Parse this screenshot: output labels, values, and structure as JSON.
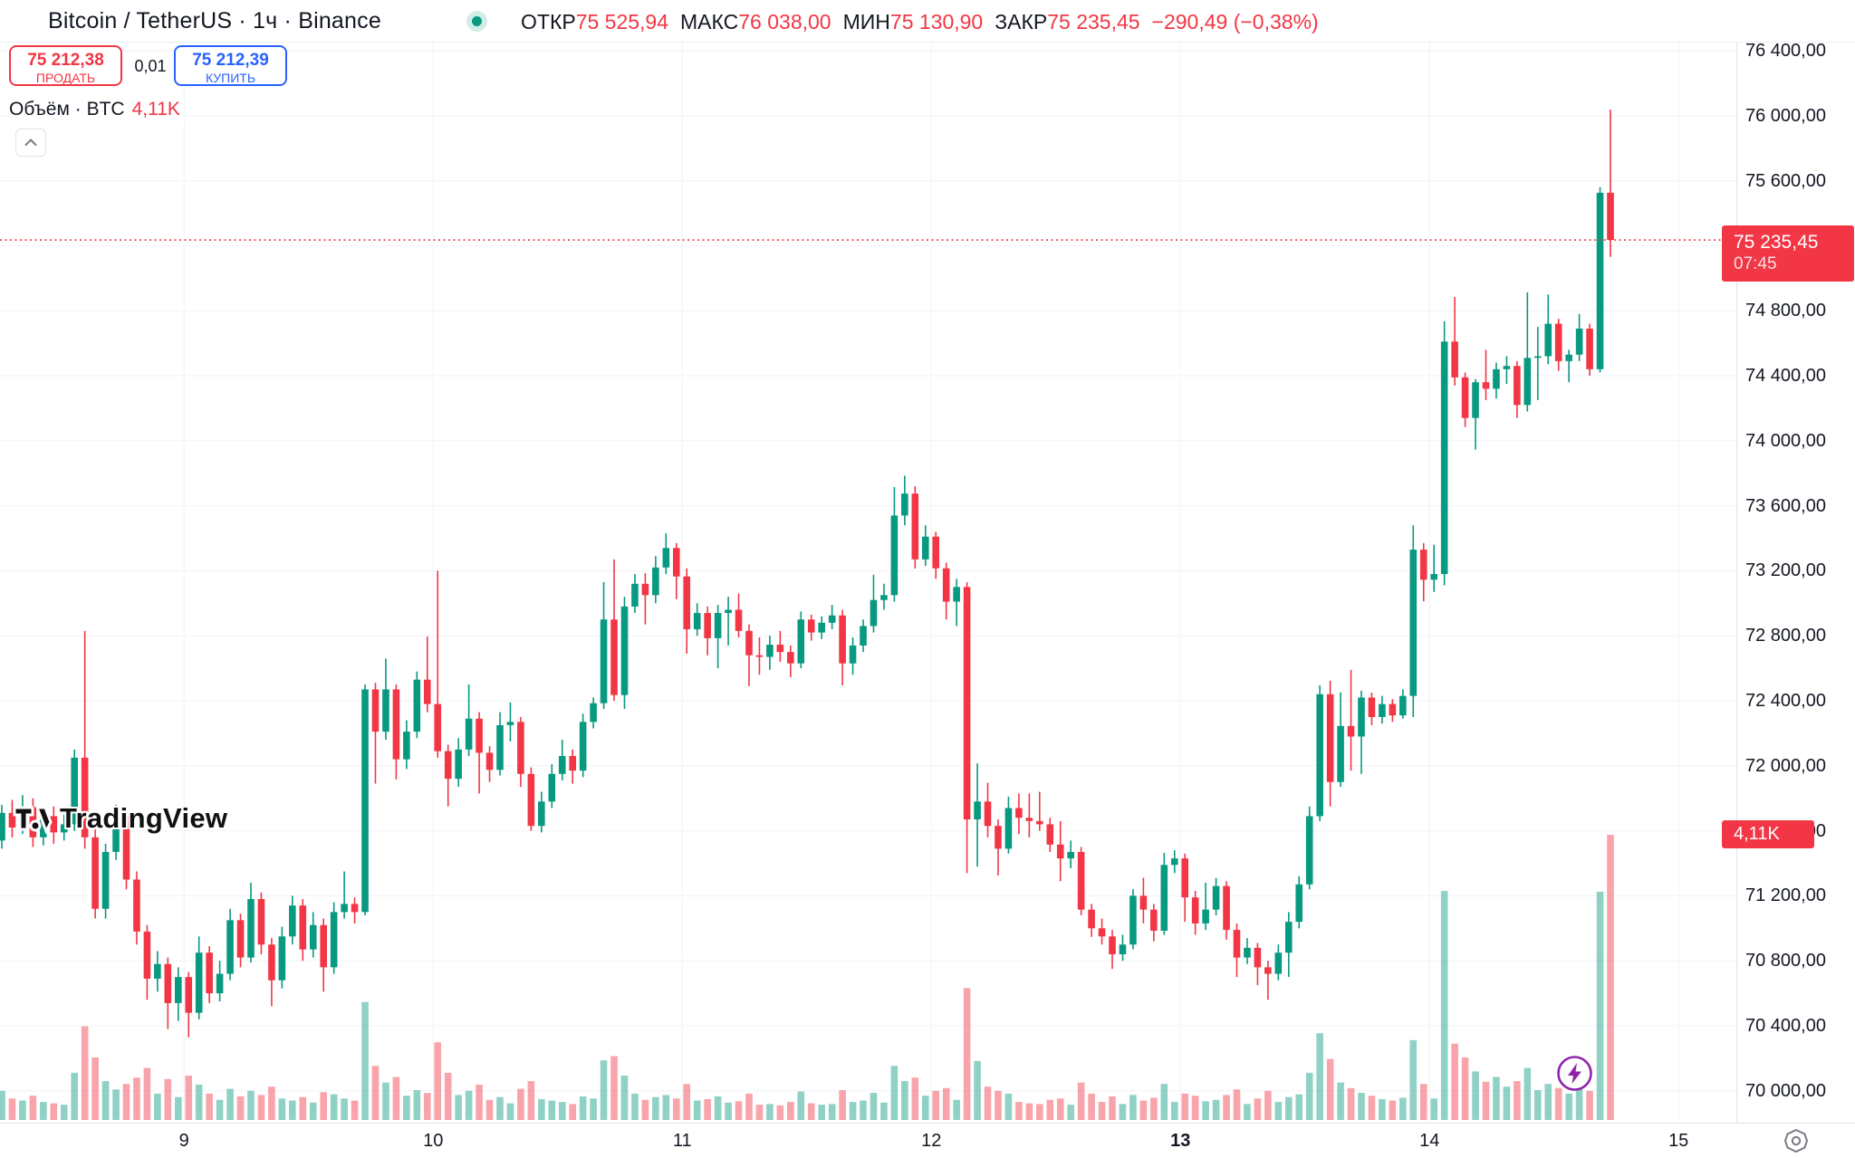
{
  "header": {
    "symbol_title": "Bitcoin / TetherUS · 1ч · Binance",
    "btc_glyph": "₿",
    "ohlc": {
      "open_label": "ОТКР",
      "open": "75 525,94",
      "high_label": "МАКС",
      "high": "76 038,00",
      "low_label": "МИН",
      "low": "75 130,90",
      "close_label": "ЗАКР",
      "close": "75 235,45",
      "change": "−290,49 (−0,38%)"
    }
  },
  "trade_panel": {
    "sell_price": "75 212,38",
    "sell_label": "ПРОДАТЬ",
    "spread": "0,01",
    "buy_price": "75 212,39",
    "buy_label": "КУПИТЬ"
  },
  "volume_row": {
    "label": "Объём · BTC",
    "value": "4,11K"
  },
  "watermark": "TradingView",
  "price_scale": {
    "price_badge": {
      "price": "75 235,45",
      "countdown": "07:45"
    },
    "volume_badge": "4,11K",
    "labels": [
      {
        "p": 76400,
        "t": "76 400,00"
      },
      {
        "p": 76000,
        "t": "76 000,00"
      },
      {
        "p": 75600,
        "t": "75 600,00"
      },
      {
        "p": 74800,
        "t": "74 800,00"
      },
      {
        "p": 74400,
        "t": "74 400,00"
      },
      {
        "p": 74000,
        "t": "74 000,00"
      },
      {
        "p": 73600,
        "t": "73 600,00"
      },
      {
        "p": 73200,
        "t": "73 200,00"
      },
      {
        "p": 72800,
        "t": "72 800,00"
      },
      {
        "p": 72400,
        "t": "72 400,00"
      },
      {
        "p": 72000,
        "t": "72 000,00"
      },
      {
        "p": 71600,
        "t": "71 600,00"
      },
      {
        "p": 71200,
        "t": "71 200,00"
      },
      {
        "p": 70800,
        "t": "70 800,00"
      },
      {
        "p": 70400,
        "t": "70 400,00"
      },
      {
        "p": 70000,
        "t": "70 000,00"
      }
    ]
  },
  "colors": {
    "up": "#089981",
    "down": "#f23645",
    "buy_blue": "#2962ff",
    "grid": "#f1f3f8",
    "volume_up": "rgba(8,153,129,0.45)",
    "volume_down": "rgba(242,54,69,0.45)",
    "badge_red": "#f23645",
    "btc_orange": "#f7931a",
    "lightning_purple": "#8e24aa",
    "muted": "#787b86"
  },
  "chart_data": {
    "type": "candlestick",
    "symbol": "BTCUSDT",
    "exchange": "Binance",
    "interval": "1h",
    "title": "Bitcoin / TetherUS · 1ч · Binance",
    "current_price": 75235.45,
    "current_volume_btc": 4110,
    "price_axis": {
      "gridline_min": 70000,
      "gridline_max": 76400,
      "grid_step": 400,
      "visible_range": [
        69800,
        76710
      ]
    },
    "volume_axis": {
      "max": 4110
    },
    "legend": "Объём · BTC",
    "time_axis": {
      "day_labels": [
        {
          "label": "9",
          "candle_index": 18,
          "bold": false
        },
        {
          "label": "10",
          "candle_index": 42,
          "bold": false
        },
        {
          "label": "11",
          "candle_index": 66,
          "bold": false
        },
        {
          "label": "12",
          "candle_index": 90,
          "bold": false
        },
        {
          "label": "13",
          "candle_index": 114,
          "bold": true
        },
        {
          "label": "14",
          "candle_index": 138,
          "bold": false
        },
        {
          "label": "15",
          "candle_index": 162,
          "bold": false
        }
      ]
    },
    "candles_format": [
      "open",
      "high",
      "low",
      "close",
      "volume_btc"
    ],
    "candles": [
      [
        71540,
        71760,
        71490,
        71710,
        420
      ],
      [
        71710,
        71790,
        71560,
        71620,
        310
      ],
      [
        71620,
        71820,
        71580,
        71750,
        280
      ],
      [
        71750,
        71800,
        71500,
        71560,
        350
      ],
      [
        71560,
        71740,
        71510,
        71690,
        260
      ],
      [
        71690,
        71750,
        71520,
        71590,
        240
      ],
      [
        71590,
        71700,
        71540,
        71640,
        220
      ],
      [
        71640,
        72100,
        71600,
        72050,
        680
      ],
      [
        72050,
        72830,
        71490,
        71560,
        1350
      ],
      [
        71560,
        71620,
        71060,
        71120,
        900
      ],
      [
        71120,
        71520,
        71060,
        71470,
        560
      ],
      [
        71470,
        71760,
        71420,
        71690,
        440
      ],
      [
        71690,
        71720,
        71240,
        71300,
        520
      ],
      [
        71300,
        71350,
        70900,
        70980,
        610
      ],
      [
        70980,
        71020,
        70560,
        70690,
        750
      ],
      [
        70690,
        70860,
        70610,
        70780,
        380
      ],
      [
        70780,
        70820,
        70380,
        70540,
        590
      ],
      [
        70540,
        70760,
        70430,
        70700,
        330
      ],
      [
        70700,
        70730,
        70330,
        70480,
        640
      ],
      [
        70480,
        70950,
        70440,
        70850,
        510
      ],
      [
        70850,
        70890,
        70540,
        70600,
        380
      ],
      [
        70600,
        70800,
        70550,
        70720,
        290
      ],
      [
        70720,
        71120,
        70680,
        71050,
        450
      ],
      [
        71050,
        71090,
        70760,
        70820,
        340
      ],
      [
        70820,
        71280,
        70790,
        71180,
        420
      ],
      [
        71180,
        71220,
        70840,
        70900,
        360
      ],
      [
        70900,
        70940,
        70520,
        70680,
        480
      ],
      [
        70680,
        71010,
        70630,
        70950,
        310
      ],
      [
        70950,
        71200,
        70900,
        71140,
        280
      ],
      [
        71140,
        71180,
        70800,
        70870,
        330
      ],
      [
        70870,
        71100,
        70820,
        71020,
        250
      ],
      [
        71020,
        71060,
        70610,
        70760,
        400
      ],
      [
        70760,
        71160,
        70720,
        71100,
        370
      ],
      [
        71100,
        71350,
        71060,
        71150,
        310
      ],
      [
        71150,
        71190,
        71030,
        71100,
        280
      ],
      [
        71100,
        72500,
        71080,
        72470,
        1700
      ],
      [
        72470,
        72510,
        71890,
        72210,
        780
      ],
      [
        72210,
        72660,
        72160,
        72470,
        540
      ],
      [
        72470,
        72500,
        71916,
        72040,
        620
      ],
      [
        72040,
        72280,
        71980,
        72210,
        350
      ],
      [
        72210,
        72580,
        72170,
        72530,
        430
      ],
      [
        72530,
        72795,
        72330,
        72380,
        390
      ],
      [
        72380,
        73200,
        72050,
        72090,
        1120
      ],
      [
        72090,
        72130,
        71750,
        71920,
        680
      ],
      [
        71920,
        72170,
        71870,
        72100,
        360
      ],
      [
        72100,
        72500,
        72060,
        72290,
        420
      ],
      [
        72290,
        72330,
        71830,
        72080,
        510
      ],
      [
        72080,
        72120,
        71900,
        71975,
        290
      ],
      [
        71975,
        72330,
        71940,
        72250,
        330
      ],
      [
        72250,
        72390,
        72150,
        72270,
        240
      ],
      [
        72270,
        72300,
        71870,
        71950,
        450
      ],
      [
        71950,
        71990,
        71600,
        71630,
        560
      ],
      [
        71630,
        71840,
        71590,
        71780,
        300
      ],
      [
        71780,
        72010,
        71740,
        71950,
        280
      ],
      [
        71950,
        72160,
        71910,
        72060,
        260
      ],
      [
        72060,
        72100,
        71890,
        71970,
        230
      ],
      [
        71970,
        72320,
        71930,
        72270,
        340
      ],
      [
        72270,
        72420,
        72230,
        72385,
        310
      ],
      [
        72385,
        73130,
        72350,
        72900,
        860
      ],
      [
        72900,
        73270,
        72400,
        72435,
        920
      ],
      [
        72435,
        73040,
        72350,
        72980,
        640
      ],
      [
        72980,
        73180,
        72940,
        73120,
        380
      ],
      [
        73120,
        73185,
        72870,
        73050,
        290
      ],
      [
        73050,
        73290,
        73000,
        73220,
        330
      ],
      [
        73220,
        73430,
        73180,
        73340,
        360
      ],
      [
        73340,
        73370,
        73025,
        73165,
        310
      ],
      [
        73165,
        73215,
        72690,
        72840,
        520
      ],
      [
        72840,
        73000,
        72800,
        72940,
        280
      ],
      [
        72940,
        72980,
        72680,
        72785,
        300
      ],
      [
        72785,
        72990,
        72600,
        72940,
        340
      ],
      [
        72940,
        73040,
        72740,
        72960,
        250
      ],
      [
        72960,
        73060,
        72790,
        72830,
        270
      ],
      [
        72830,
        72870,
        72490,
        72680,
        380
      ],
      [
        72680,
        72790,
        72560,
        72670,
        220
      ],
      [
        72670,
        72800,
        72590,
        72745,
        230
      ],
      [
        72745,
        72830,
        72640,
        72700,
        210
      ],
      [
        72700,
        72740,
        72545,
        72630,
        260
      ],
      [
        72630,
        72950,
        72600,
        72900,
        410
      ],
      [
        72900,
        72930,
        72770,
        72820,
        240
      ],
      [
        72820,
        72920,
        72780,
        72880,
        220
      ],
      [
        72880,
        72990,
        72840,
        72925,
        230
      ],
      [
        72925,
        72960,
        72495,
        72630,
        430
      ],
      [
        72630,
        72790,
        72560,
        72740,
        260
      ],
      [
        72740,
        72900,
        72700,
        72860,
        280
      ],
      [
        72860,
        73175,
        72820,
        73020,
        390
      ],
      [
        73020,
        73120,
        72960,
        73050,
        250
      ],
      [
        73050,
        73715,
        73010,
        73540,
        780
      ],
      [
        73540,
        73785,
        73480,
        73675,
        560
      ],
      [
        73675,
        73720,
        73214,
        73270,
        610
      ],
      [
        73270,
        73480,
        73230,
        73410,
        350
      ],
      [
        73410,
        73440,
        73150,
        73215,
        420
      ],
      [
        73215,
        73250,
        72900,
        73010,
        460
      ],
      [
        73010,
        73150,
        72860,
        73100,
        290
      ],
      [
        73100,
        73130,
        71340,
        71670,
        1900
      ],
      [
        71670,
        72015,
        71380,
        71780,
        850
      ],
      [
        71780,
        71895,
        71560,
        71630,
        480
      ],
      [
        71630,
        71670,
        71325,
        71490,
        420
      ],
      [
        71490,
        71810,
        71460,
        71740,
        380
      ],
      [
        71740,
        71830,
        71580,
        71680,
        260
      ],
      [
        71680,
        71830,
        71560,
        71660,
        240
      ],
      [
        71660,
        71840,
        71600,
        71640,
        230
      ],
      [
        71640,
        71680,
        71470,
        71515,
        290
      ],
      [
        71515,
        71660,
        71290,
        71430,
        310
      ],
      [
        71430,
        71540,
        71370,
        71470,
        220
      ],
      [
        71470,
        71500,
        71080,
        71115,
        540
      ],
      [
        71115,
        71150,
        70947,
        71000,
        380
      ],
      [
        71000,
        71060,
        70900,
        70950,
        260
      ],
      [
        70950,
        70990,
        70750,
        70840,
        340
      ],
      [
        70840,
        70960,
        70800,
        70900,
        230
      ],
      [
        70900,
        71242,
        70870,
        71200,
        360
      ],
      [
        71200,
        71311,
        71030,
        71115,
        280
      ],
      [
        71115,
        71150,
        70920,
        70985,
        320
      ],
      [
        70985,
        71465,
        70960,
        71390,
        520
      ],
      [
        71390,
        71480,
        71340,
        71430,
        260
      ],
      [
        71430,
        71460,
        71040,
        71190,
        380
      ],
      [
        71190,
        71230,
        70960,
        71030,
        350
      ],
      [
        71030,
        71280,
        70990,
        71115,
        270
      ],
      [
        71115,
        71310,
        71080,
        71260,
        290
      ],
      [
        71260,
        71290,
        70930,
        70990,
        360
      ],
      [
        70990,
        71030,
        70700,
        70820,
        440
      ],
      [
        70820,
        70940,
        70780,
        70880,
        230
      ],
      [
        70880,
        70910,
        70650,
        70760,
        310
      ],
      [
        70760,
        70800,
        70560,
        70720,
        420
      ],
      [
        70720,
        70900,
        70680,
        70850,
        260
      ],
      [
        70850,
        71100,
        70700,
        71040,
        330
      ],
      [
        71040,
        71320,
        71000,
        71270,
        370
      ],
      [
        71270,
        71750,
        71240,
        71690,
        680
      ],
      [
        71690,
        72495,
        71660,
        72440,
        1250
      ],
      [
        72440,
        72523,
        71750,
        71900,
        880
      ],
      [
        71900,
        72451,
        71870,
        72245,
        540
      ],
      [
        72245,
        72590,
        71970,
        72180,
        460
      ],
      [
        72180,
        72462,
        71950,
        72420,
        390
      ],
      [
        72420,
        72450,
        72250,
        72300,
        350
      ],
      [
        72300,
        72430,
        72260,
        72380,
        300
      ],
      [
        72380,
        72410,
        72270,
        72310,
        280
      ],
      [
        72310,
        72470,
        72290,
        72430,
        320
      ],
      [
        72430,
        73480,
        72300,
        73330,
        1150
      ],
      [
        73330,
        73370,
        73012,
        73145,
        520
      ],
      [
        73145,
        73360,
        73070,
        73180,
        310
      ],
      [
        73180,
        74735,
        73110,
        74610,
        3300
      ],
      [
        74610,
        74885,
        74340,
        74390,
        1100
      ],
      [
        74390,
        74420,
        74085,
        74140,
        900
      ],
      [
        74140,
        74380,
        73945,
        74360,
        700
      ],
      [
        74360,
        74560,
        74250,
        74320,
        550
      ],
      [
        74320,
        74480,
        74260,
        74440,
        620
      ],
      [
        74440,
        74520,
        74350,
        74460,
        480
      ],
      [
        74460,
        74490,
        74140,
        74220,
        560
      ],
      [
        74220,
        74913,
        74180,
        74510,
        750
      ],
      [
        74510,
        74700,
        74250,
        74520,
        430
      ],
      [
        74520,
        74900,
        74470,
        74720,
        520
      ],
      [
        74720,
        74750,
        74430,
        74490,
        460
      ],
      [
        74490,
        74560,
        74360,
        74530,
        380
      ],
      [
        74530,
        74780,
        74490,
        74690,
        640
      ],
      [
        74690,
        74720,
        74400,
        74440,
        420
      ],
      [
        74440,
        75560,
        74420,
        75526,
        3290
      ],
      [
        75525.94,
        76038,
        75130.9,
        75235.45,
        4110
      ]
    ]
  }
}
